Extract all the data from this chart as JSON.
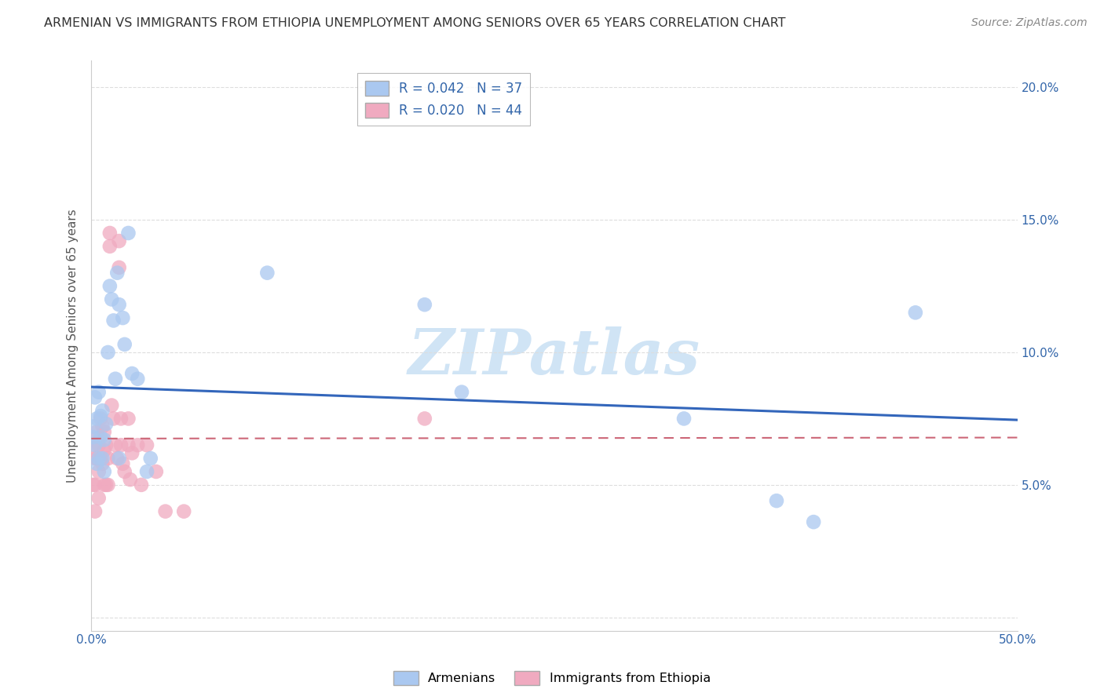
{
  "title": "ARMENIAN VS IMMIGRANTS FROM ETHIOPIA UNEMPLOYMENT AMONG SENIORS OVER 65 YEARS CORRELATION CHART",
  "source": "Source: ZipAtlas.com",
  "ylabel": "Unemployment Among Seniors over 65 years",
  "xlim": [
    0.0,
    0.5
  ],
  "ylim": [
    -0.005,
    0.21
  ],
  "xticks": [
    0.0,
    0.1,
    0.2,
    0.3,
    0.4,
    0.5
  ],
  "xtick_labels_show": [
    "0.0%",
    "",
    "",
    "",
    "",
    "50.0%"
  ],
  "yticks": [
    0.0,
    0.05,
    0.1,
    0.15,
    0.2
  ],
  "ytick_labels": [
    "",
    "5.0%",
    "10.0%",
    "15.0%",
    "20.0%"
  ],
  "legend_line1": "R = 0.042   N = 37",
  "legend_line2": "R = 0.020   N = 44",
  "armenians_x": [
    0.001,
    0.001,
    0.002,
    0.002,
    0.003,
    0.003,
    0.004,
    0.004,
    0.005,
    0.005,
    0.006,
    0.006,
    0.007,
    0.007,
    0.008,
    0.009,
    0.01,
    0.011,
    0.012,
    0.013,
    0.014,
    0.015,
    0.015,
    0.017,
    0.018,
    0.02,
    0.022,
    0.025,
    0.03,
    0.032,
    0.095,
    0.18,
    0.2,
    0.32,
    0.37,
    0.39,
    0.445
  ],
  "armenians_y": [
    0.072,
    0.068,
    0.083,
    0.065,
    0.075,
    0.058,
    0.085,
    0.06,
    0.076,
    0.068,
    0.078,
    0.06,
    0.067,
    0.055,
    0.073,
    0.1,
    0.125,
    0.12,
    0.112,
    0.09,
    0.13,
    0.118,
    0.06,
    0.113,
    0.103,
    0.145,
    0.092,
    0.09,
    0.055,
    0.06,
    0.13,
    0.118,
    0.085,
    0.075,
    0.044,
    0.036,
    0.115
  ],
  "ethiopia_x": [
    0.001,
    0.001,
    0.002,
    0.002,
    0.002,
    0.003,
    0.003,
    0.004,
    0.004,
    0.004,
    0.005,
    0.005,
    0.006,
    0.006,
    0.007,
    0.007,
    0.007,
    0.008,
    0.008,
    0.009,
    0.009,
    0.01,
    0.01,
    0.011,
    0.012,
    0.013,
    0.014,
    0.015,
    0.015,
    0.016,
    0.016,
    0.017,
    0.018,
    0.02,
    0.02,
    0.021,
    0.022,
    0.025,
    0.027,
    0.03,
    0.035,
    0.04,
    0.05,
    0.18
  ],
  "ethiopia_y": [
    0.065,
    0.05,
    0.06,
    0.05,
    0.04,
    0.07,
    0.06,
    0.065,
    0.055,
    0.045,
    0.075,
    0.06,
    0.072,
    0.058,
    0.07,
    0.063,
    0.05,
    0.065,
    0.05,
    0.06,
    0.05,
    0.145,
    0.14,
    0.08,
    0.075,
    0.065,
    0.06,
    0.142,
    0.132,
    0.075,
    0.065,
    0.058,
    0.055,
    0.075,
    0.065,
    0.052,
    0.062,
    0.065,
    0.05,
    0.065,
    0.055,
    0.04,
    0.04,
    0.075
  ],
  "scatter_size": 180,
  "blue_color": "#aac8f0",
  "pink_color": "#f0aac0",
  "blue_line_color": "#3366bb",
  "pink_line_color": "#cc6677",
  "watermark_text": "ZIPatlas",
  "watermark_color": "#d0e4f5",
  "background_color": "#ffffff",
  "grid_color": "#dddddd"
}
